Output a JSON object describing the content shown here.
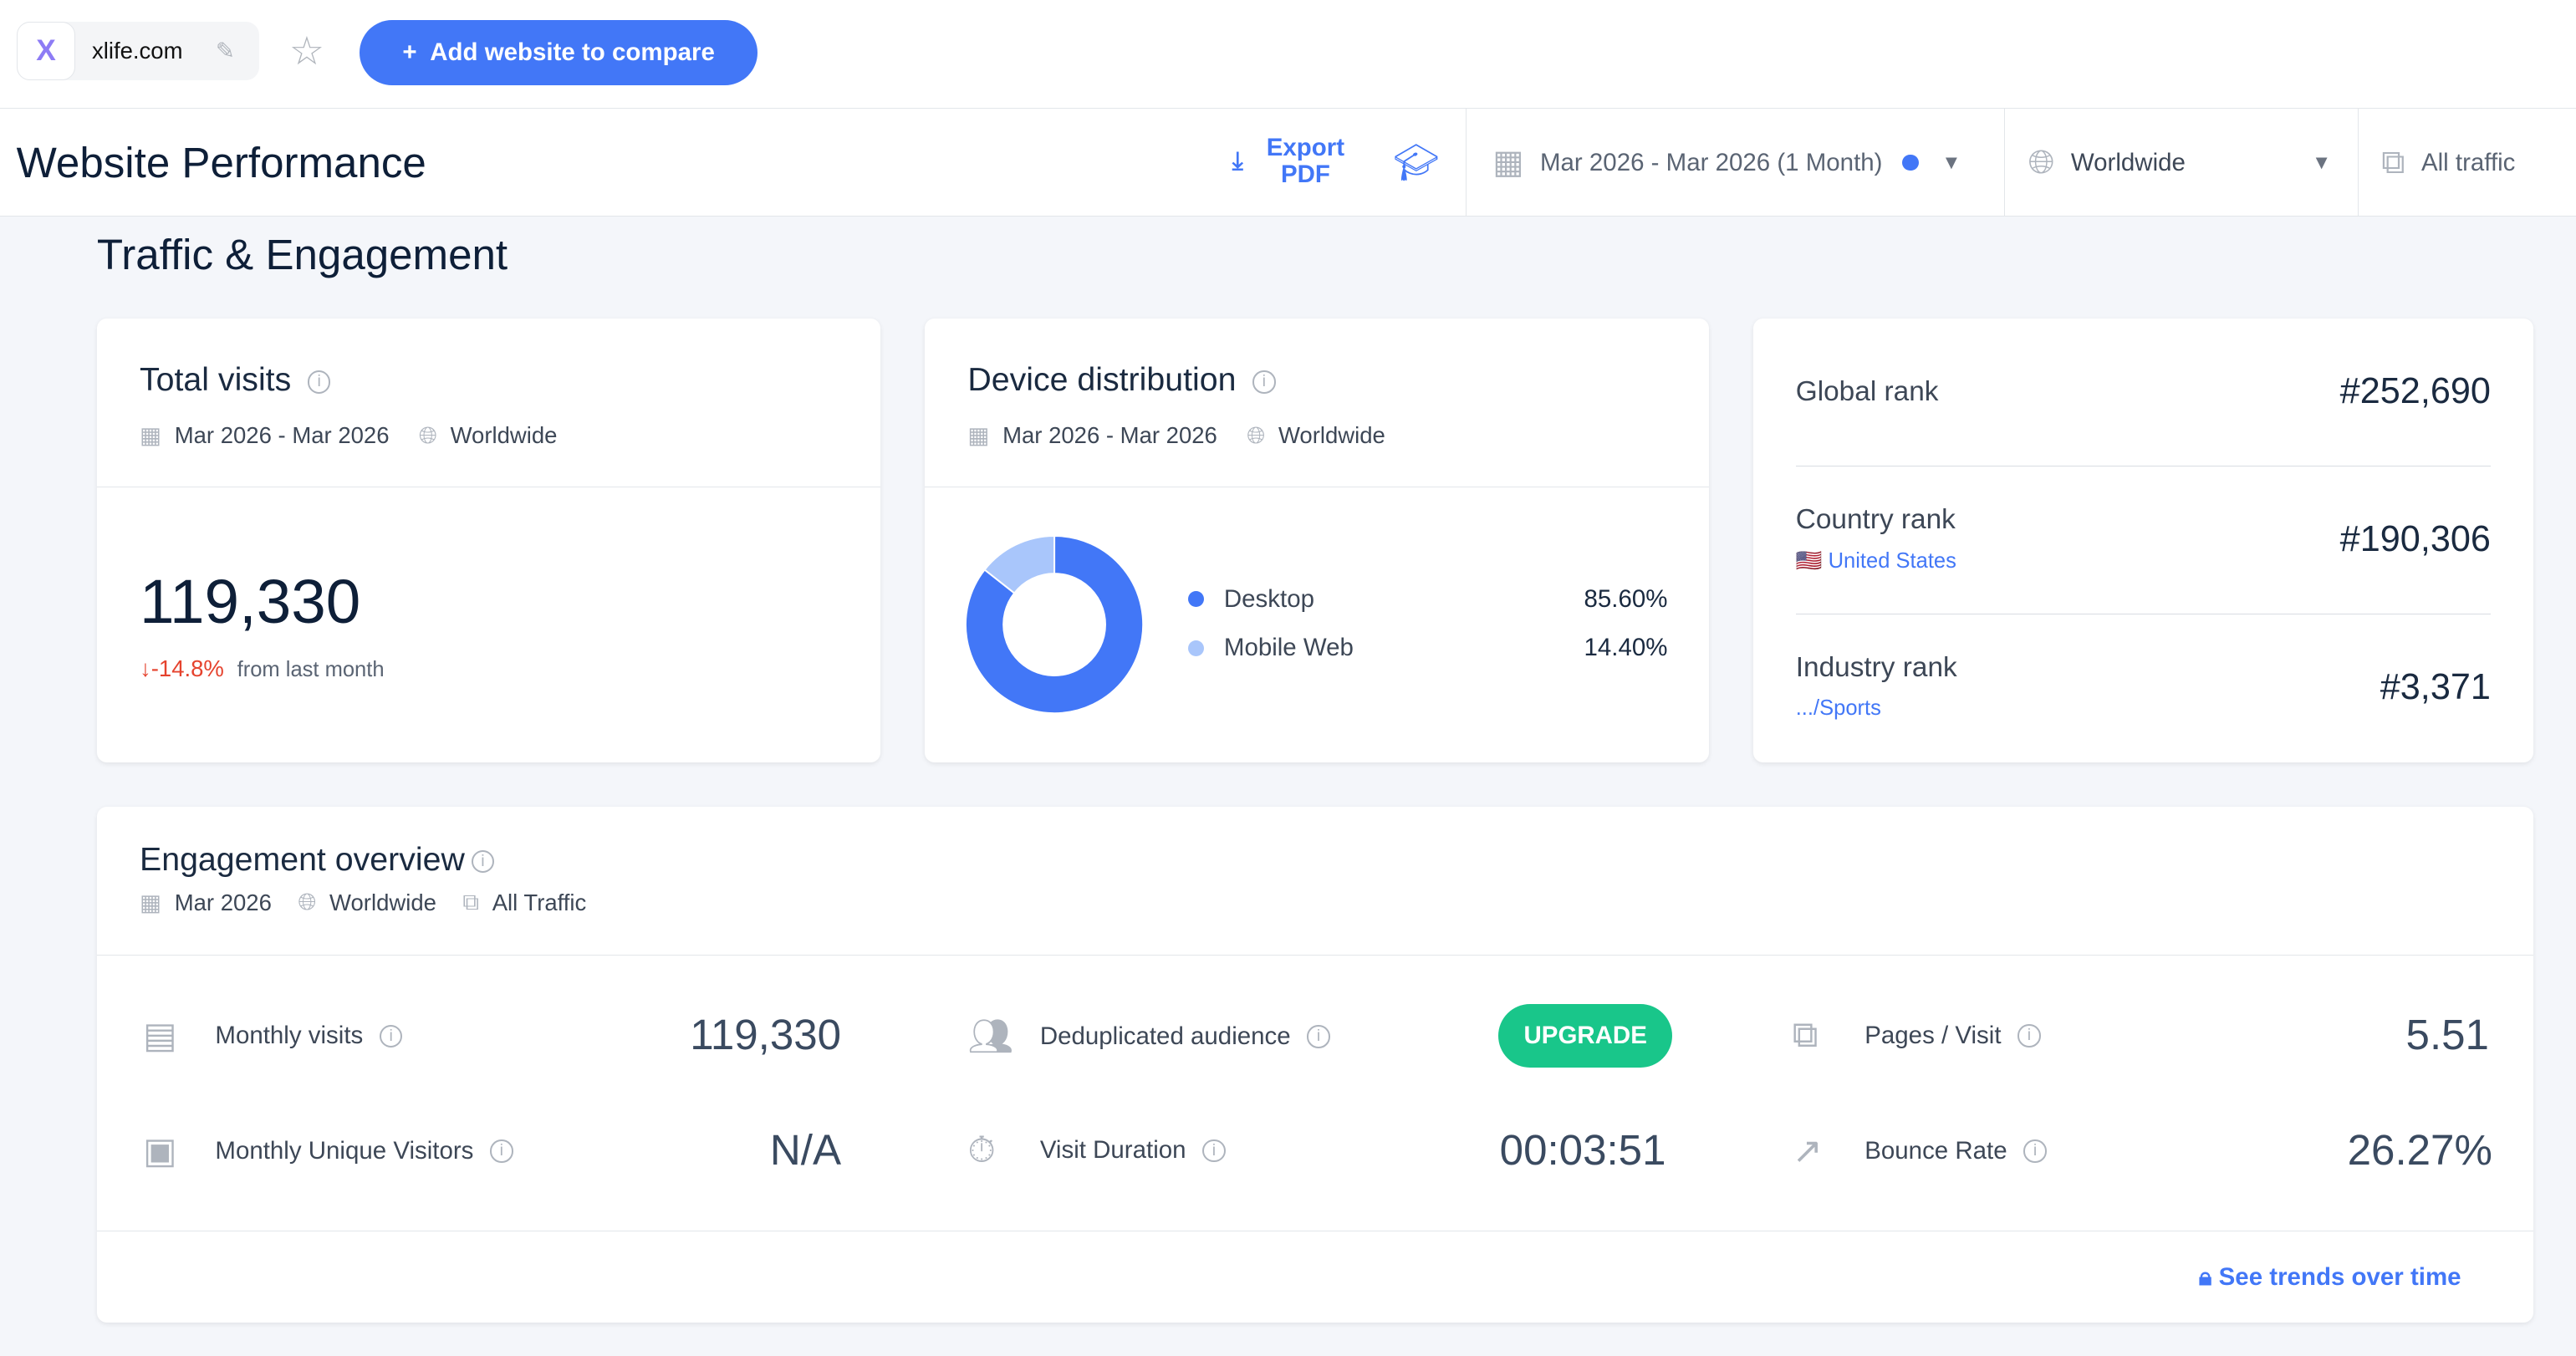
{
  "topbar": {
    "site": "xlife.com",
    "favicon": "X",
    "add_button": "Add website to compare"
  },
  "header": {
    "title": "Website Performance",
    "export": "Export PDF",
    "date_range": "Mar 2026 - Mar 2026 (1 Month)",
    "region": "Worldwide",
    "traffic": "All traffic"
  },
  "section_title": "Traffic & Engagement",
  "total_visits": {
    "title": "Total visits",
    "date": "Mar 2026 - Mar 2026",
    "region": "Worldwide",
    "value": "119,330",
    "change": "-14.8%",
    "change_text": "from last month"
  },
  "device": {
    "title": "Device distribution",
    "date": "Mar 2026 - Mar 2026",
    "region": "Worldwide",
    "items": [
      {
        "label": "Desktop",
        "pct": "85.60%",
        "value": 85.6,
        "color": "#4277f7"
      },
      {
        "label": "Mobile Web",
        "pct": "14.40%",
        "value": 14.4,
        "color": "#a9c6fb"
      }
    ]
  },
  "ranks": [
    {
      "label": "Global rank",
      "value": "#252,690"
    },
    {
      "label": "Country rank",
      "value": "#190,306",
      "sub": "United States"
    },
    {
      "label": "Industry rank",
      "value": "#3,371",
      "sub": ".../Sports"
    }
  ],
  "engagement": {
    "title": "Engagement overview",
    "date": "Mar 2026",
    "region": "Worldwide",
    "traffic": "All Traffic",
    "metrics": [
      {
        "label": "Monthly visits",
        "value": "119,330"
      },
      {
        "label": "Deduplicated audience",
        "value": "UPGRADE"
      },
      {
        "label": "Pages / Visit",
        "value": "5.51"
      },
      {
        "label": "Monthly Unique Visitors",
        "value": "N/A"
      },
      {
        "label": "Visit Duration",
        "value": "00:03:51"
      },
      {
        "label": "Bounce Rate",
        "value": "26.27%"
      }
    ],
    "trends_link": "See trends over time"
  }
}
